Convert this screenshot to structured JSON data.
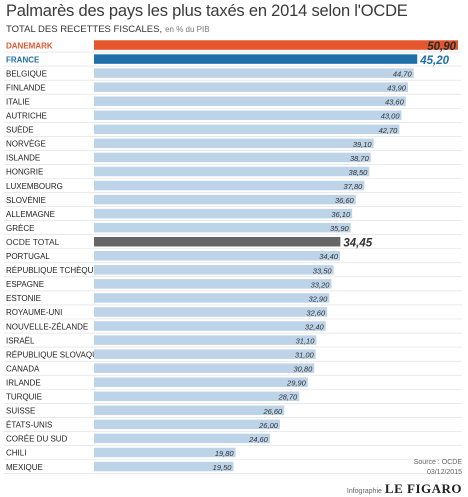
{
  "header": {
    "title": "Palmarès des pays les plus taxés en 2014 selon l'OCDE",
    "subtitle": "TOTAL DES RECETTES FISCALES,",
    "unit": "en % du PIB"
  },
  "footer": {
    "source": "Source : OCDE",
    "date": "03/12/2015",
    "credit_prefix": "Infographie",
    "brand": "LE FIGARO"
  },
  "colors": {
    "default_bar": "#bcd3e8",
    "highlight_denmark": "#e4572e",
    "highlight_france": "#1f6fa8",
    "highlight_ocde": "#666666",
    "row_divider": "#dddddd"
  },
  "chart_data": {
    "type": "bar",
    "orientation": "horizontal",
    "xlim": [
      0,
      50.9
    ],
    "categories": [
      "DANEMARK",
      "FRANCE",
      "BELGIQUE",
      "FINLANDE",
      "ITALIE",
      "AUTRICHE",
      "SUÈDE",
      "NORVÈGE",
      "ISLANDE",
      "HONGRIE",
      "LUXEMBOURG",
      "SLOVÉNIE",
      "ALLEMAGNE",
      "GRÈCE",
      "OCDE TOTAL",
      "PORTUGAL",
      "RÉPUBLIQUE TCHÈQUE",
      "ESPAGNE",
      "ESTONIE",
      "ROYAUME-UNI",
      "NOUVELLE-ZÉLANDE",
      "ISRAËL",
      "RÉPUBLIQUE SLOVAQUE",
      "CANADA",
      "IRLANDE",
      "TURQUIE",
      "SUISSE",
      "ÉTATS-UNIS",
      "CORÉE DU SUD",
      "CHILI",
      "MEXIQUE"
    ],
    "values": [
      50.9,
      45.2,
      44.7,
      43.9,
      43.6,
      43.0,
      42.7,
      39.1,
      38.7,
      38.5,
      37.8,
      36.6,
      36.1,
      35.9,
      34.45,
      34.4,
      33.5,
      33.2,
      32.9,
      32.6,
      32.4,
      31.1,
      31.0,
      30.8,
      29.9,
      28.7,
      26.6,
      26.0,
      24.6,
      19.8,
      19.5
    ],
    "value_labels": [
      "50,90",
      "45,20",
      "44,70",
      "43,90",
      "43,60",
      "43,00",
      "42,70",
      "39,10",
      "38,70",
      "38,50",
      "37,80",
      "36,60",
      "36,10",
      "35,90",
      "34,45",
      "34,40",
      "33,50",
      "33,20",
      "32,90",
      "32,60",
      "32,40",
      "31,10",
      "31,00",
      "30,80",
      "29,90",
      "28,70",
      "26,60",
      "26,00",
      "24,60",
      "19,80",
      "19,50"
    ],
    "highlight": {
      "DANEMARK": "denmark",
      "FRANCE": "france",
      "OCDE TOTAL": "ocde"
    }
  }
}
